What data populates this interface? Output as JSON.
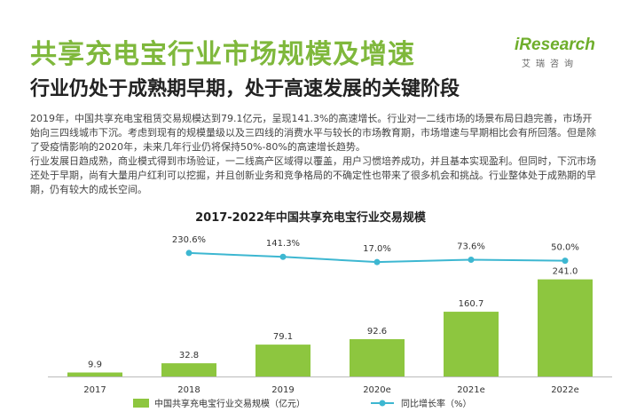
{
  "header": {
    "title": "共享充电宝行业市场规模及增速",
    "subtitle": "行业仍处于成熟期早期，处于高速发展的关键阶段"
  },
  "logo": {
    "text": "iResearch",
    "subtext": "艾瑞咨询",
    "color": "#6fae2c"
  },
  "paragraphs": [
    "2019年，中国共享充电宝租赁交易规模达到79.1亿元，呈现141.3%的高速增长。行业对一二线市场的场景布局日趋完善，市场开始向三四线城市下沉。考虑到现有的规模量级以及三四线的消费水平与较长的市场教育期，市场增速与早期相比会有所回落。但是除了受疫情影响的2020年，未来几年行业仍将保持50%-80%的高速增长趋势。",
    "行业发展日趋成熟，商业模式得到市场验证，一二线高产区域得以覆盖，用户习惯培养成功，并且基本实现盈利。但同时，下沉市场还处于早期，尚有大量用户红利可以挖掘，并且创新业务和竞争格局的不确定性也带来了很多机会和挑战。行业整体处于成熟期的早期，仍有较大的成长空间。"
  ],
  "chart_data": {
    "type": "bar",
    "title": "2017-2022年中国共享充电宝行业交易规模",
    "categories": [
      "2017",
      "2018",
      "2019",
      "2020e",
      "2021e",
      "2022e"
    ],
    "series": [
      {
        "name": "中国共享充电宝行业交易规模（亿元）",
        "type": "bar",
        "values": [
          9.9,
          32.8,
          79.1,
          92.6,
          160.7,
          241.0
        ],
        "labels": [
          "9.9",
          "32.8",
          "79.1",
          "92.6",
          "160.7",
          "241.0"
        ],
        "color": "#8dc63f"
      },
      {
        "name": "同比增长率（%）",
        "type": "line",
        "values": [
          null,
          230.6,
          141.3,
          17.0,
          73.6,
          50.0
        ],
        "labels": [
          "",
          "230.6%",
          "141.3%",
          "17.0%",
          "73.6%",
          "50.0%"
        ],
        "color": "#3db7d1"
      }
    ],
    "ylim": [
      0,
      260
    ],
    "grid": false,
    "legend_position": "bottom"
  }
}
